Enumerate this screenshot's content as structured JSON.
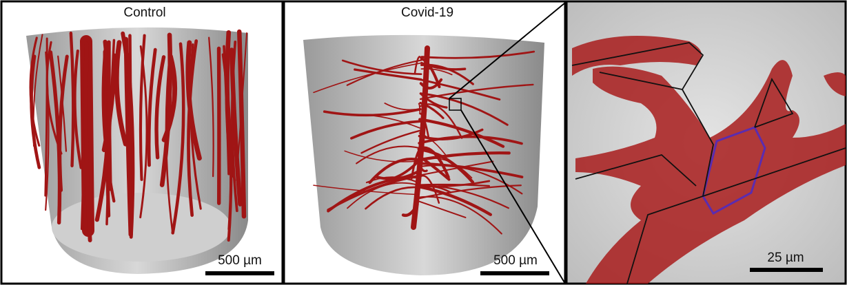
{
  "panels": [
    {
      "label": "Control",
      "scale_bar": "500 µm"
    },
    {
      "label": "Covid-19",
      "scale_bar": "500 µm"
    },
    {
      "scale_bar": "25 µm"
    }
  ]
}
